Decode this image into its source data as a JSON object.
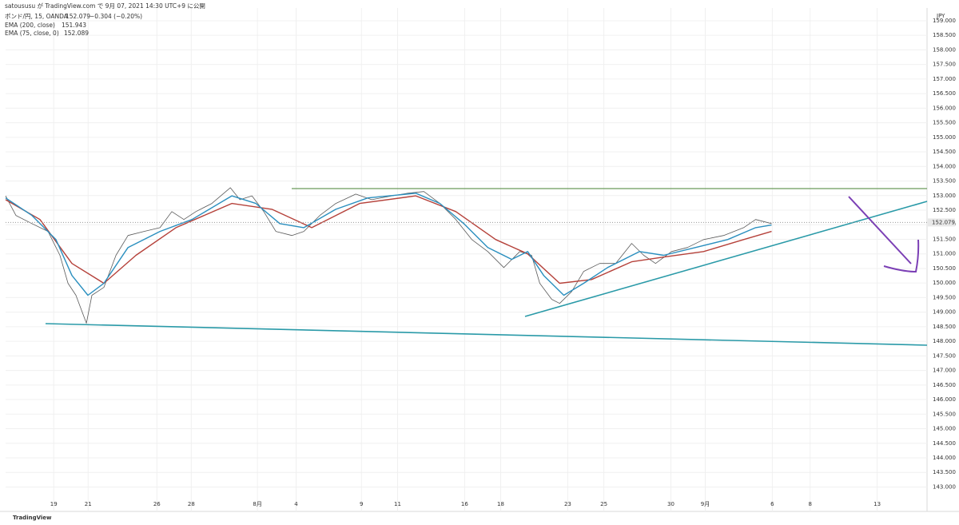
{
  "chart_data": {
    "type": "line",
    "attribution": "satoususu が TradingView.com で 9月 07, 2021 14:30 UTC+9 に公開",
    "symbol": "ポンド/円, 15, OANDA",
    "last_price": 152.079,
    "change": "−0.304 (−0.20%)",
    "currency": "JPY",
    "brand": "TradingView",
    "xlim": [
      0,
      53.6
    ],
    "ylim": [
      142.3,
      159.3
    ],
    "xticks": [
      {
        "value": 2.8,
        "label": "19"
      },
      {
        "value": 4.8,
        "label": "21"
      },
      {
        "value": 8.8,
        "label": "26"
      },
      {
        "value": 10.8,
        "label": "28"
      },
      {
        "value": 14.65,
        "label": "8月"
      },
      {
        "value": 16.9,
        "label": "4"
      },
      {
        "value": 20.7,
        "label": "9"
      },
      {
        "value": 22.8,
        "label": "11"
      },
      {
        "value": 26.7,
        "label": "16"
      },
      {
        "value": 28.8,
        "label": "18"
      },
      {
        "value": 32.7,
        "label": "23"
      },
      {
        "value": 34.8,
        "label": "25"
      },
      {
        "value": 38.7,
        "label": "30"
      },
      {
        "value": 40.7,
        "label": "9月"
      },
      {
        "value": 44.6,
        "label": "6"
      },
      {
        "value": 46.8,
        "label": "8"
      },
      {
        "value": 50.7,
        "label": "13"
      }
    ],
    "yticks": [
      {
        "value": 143,
        "label": "143.000"
      },
      {
        "value": 143.5,
        "label": "143.500"
      },
      {
        "value": 144,
        "label": "144.000"
      },
      {
        "value": 144.5,
        "label": "144.500"
      },
      {
        "value": 145,
        "label": "145.000"
      },
      {
        "value": 145.5,
        "label": "145.500"
      },
      {
        "value": 146,
        "label": "146.000"
      },
      {
        "value": 146.5,
        "label": "146.500"
      },
      {
        "value": 147,
        "label": "147.000"
      },
      {
        "value": 147.5,
        "label": "147.500"
      },
      {
        "value": 148,
        "label": "148.000"
      },
      {
        "value": 148.5,
        "label": "148.500"
      },
      {
        "value": 149,
        "label": "149.000"
      },
      {
        "value": 149.5,
        "label": "149.500"
      },
      {
        "value": 150,
        "label": "150.000"
      },
      {
        "value": 150.5,
        "label": "150.500"
      },
      {
        "value": 151,
        "label": "151.000"
      },
      {
        "value": 151.5,
        "label": "151.500"
      },
      {
        "value": 152,
        "label": "152.000"
      },
      {
        "value": 152.5,
        "label": "152.500"
      },
      {
        "value": 153,
        "label": "153.000"
      },
      {
        "value": 153.5,
        "label": "153.500"
      },
      {
        "value": 154,
        "label": "154.000"
      },
      {
        "value": 154.5,
        "label": "154.500"
      },
      {
        "value": 155,
        "label": "155.000"
      },
      {
        "value": 155.5,
        "label": "155.500"
      },
      {
        "value": 156,
        "label": "156.000"
      },
      {
        "value": 156.5,
        "label": "156.500"
      },
      {
        "value": 157,
        "label": "157.000"
      },
      {
        "value": 157.5,
        "label": "157.500"
      },
      {
        "value": 158,
        "label": "158.000"
      },
      {
        "value": 158.5,
        "label": "158.500"
      },
      {
        "value": 159,
        "label": "159.000"
      }
    ],
    "grid": true,
    "price": {
      "color": "#5a5a5a",
      "x": [
        0,
        0.6,
        1.53,
        2.47,
        3.16,
        3.63,
        4.09,
        4.7,
        5.02,
        5.72,
        6.42,
        7.12,
        8.05,
        8.98,
        9.67,
        10.37,
        11.07,
        12,
        13.07,
        13.63,
        14.33,
        15.02,
        15.72,
        16.65,
        17.35,
        18.28,
        19.21,
        20.37,
        21.3,
        22.47,
        23.4,
        24.33,
        25.26,
        26.19,
        27.12,
        28.05,
        28.98,
        29.91,
        30.6,
        31.07,
        31.77,
        32.23,
        32.93,
        33.63,
        34.56,
        35.49,
        36.42,
        37.12,
        37.81,
        38.74,
        39.67,
        40.6,
        41.77,
        42.93,
        43.63,
        44.56
      ],
      "values": [
        152.99,
        152.32,
        152.04,
        151.77,
        150.95,
        149.99,
        149.58,
        148.62,
        149.58,
        149.85,
        150.95,
        151.63,
        151.77,
        151.9,
        152.45,
        152.18,
        152.45,
        152.73,
        153.27,
        152.86,
        152.99,
        152.45,
        151.77,
        151.63,
        151.77,
        152.32,
        152.73,
        153.05,
        152.86,
        152.99,
        153.08,
        153.14,
        152.73,
        152.18,
        151.49,
        151.08,
        150.53,
        151.08,
        150.95,
        149.99,
        149.44,
        149.3,
        149.71,
        150.4,
        150.67,
        150.67,
        151.36,
        150.95,
        150.67,
        151.08,
        151.22,
        151.49,
        151.63,
        151.9,
        152.18,
        152.04
      ]
    },
    "series": [
      {
        "name": "EMA (200, close)",
        "last_value": 151.943,
        "color": "#b5413a",
        "x": [
          0,
          2.0,
          3.86,
          5.72,
          7.58,
          9.91,
          13.16,
          15.49,
          17.81,
          20.6,
          23.86,
          26.19,
          28.51,
          30.37,
          32.23,
          34.09,
          36.42,
          38.28,
          40.6,
          42.93,
          44.56
        ],
        "values": [
          152.86,
          152.18,
          150.67,
          149.99,
          150.95,
          151.9,
          152.73,
          152.53,
          151.9,
          152.73,
          152.99,
          152.45,
          151.49,
          151.0,
          149.99,
          150.12,
          150.73,
          150.89,
          151.08,
          151.49,
          151.77
        ]
      },
      {
        "name": "EMA (75, close, 0)",
        "last_value": 152.089,
        "color": "#2a8fbf",
        "x": [
          0,
          1.53,
          2.93,
          3.86,
          4.79,
          5.72,
          7.12,
          8.98,
          10.84,
          13.16,
          14.56,
          15.95,
          17.35,
          19.21,
          21.07,
          23.86,
          25.26,
          26.65,
          28.05,
          29.44,
          30.37,
          31.3,
          32.47,
          33.63,
          35.02,
          36.88,
          38.28,
          40.14,
          42.0,
          43.63,
          44.56
        ],
        "values": [
          152.92,
          152.32,
          151.49,
          150.26,
          149.58,
          149.99,
          151.22,
          151.77,
          152.18,
          152.99,
          152.73,
          152.04,
          151.9,
          152.53,
          152.92,
          153.08,
          152.73,
          152.04,
          151.22,
          150.81,
          151.08,
          150.26,
          149.58,
          149.99,
          150.53,
          151.08,
          150.95,
          151.22,
          151.49,
          151.9,
          151.99
        ]
      }
    ]
  }
}
